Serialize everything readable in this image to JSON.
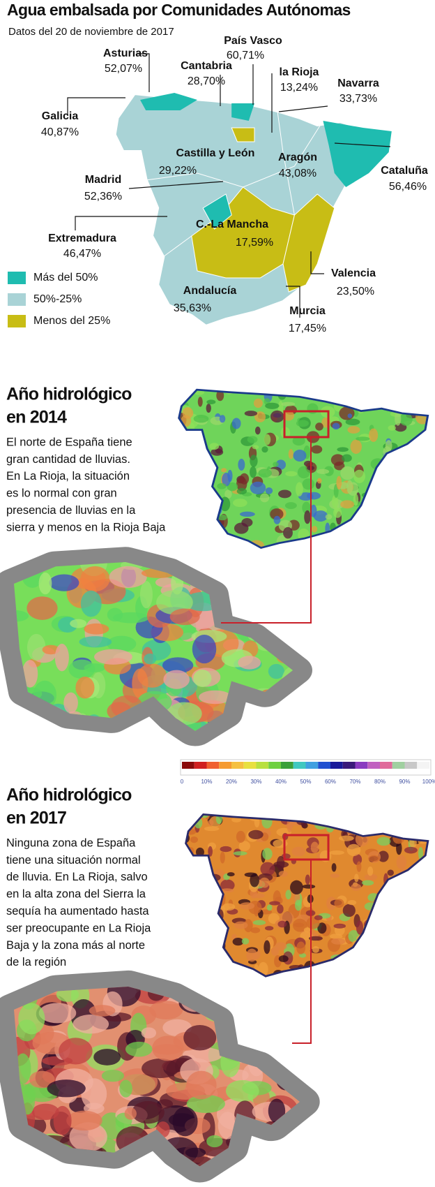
{
  "header": {
    "title": "Agua embalsada por Comunidades Autónomas",
    "subtitle": "Datos del 20 de noviembre de 2017"
  },
  "regions": [
    {
      "name": "Asturias",
      "value": "52,07%"
    },
    {
      "name": "Cantabria",
      "value": "28,70%"
    },
    {
      "name": "País Vasco",
      "value": "60,71%"
    },
    {
      "name": "la Rioja",
      "value": "13,24%"
    },
    {
      "name": "Navarra",
      "value": "33,73%"
    },
    {
      "name": "Galicia",
      "value": "40,87%"
    },
    {
      "name": "Castilla y León",
      "value": "29,22%"
    },
    {
      "name": "Aragón",
      "value": "43,08%"
    },
    {
      "name": "Cataluña",
      "value": "56,46%"
    },
    {
      "name": "Madrid",
      "value": "52,36%"
    },
    {
      "name": "Extremadura",
      "value": "46,47%"
    },
    {
      "name": "C.-La Mancha",
      "value": "17,59%"
    },
    {
      "name": "Valencia",
      "value": "23,50%"
    },
    {
      "name": "Andalucía",
      "value": "35,63%"
    },
    {
      "name": "Murcia",
      "value": "17,45%"
    }
  ],
  "legend": [
    {
      "label": "Más del 50%",
      "color": "#1fbcb0"
    },
    {
      "label": "50%-25%",
      "color": "#a9d3d6"
    },
    {
      "label": "Menos del 25%",
      "color": "#c8bd15"
    }
  ],
  "sections": [
    {
      "title": [
        "Año hidrológico",
        "en 2014"
      ],
      "text": [
        "El norte de España tiene",
        "gran cantidad de lluvias.",
        "En La Rioja, la situación",
        "es lo normal con gran",
        "presencia de lluvias en la",
        "sierra y menos en la Rioja Baja"
      ]
    },
    {
      "title": [
        "Año hidrológico",
        "en 2017"
      ],
      "text": [
        "Ninguna zona de España",
        "tiene una situación normal",
        "de lluvia. En La Rioja, salvo",
        "en la alta zona del Sierra la",
        "sequía ha aumentado hasta",
        "ser preocupante en La Rioja",
        "Baja y la zona más al norte",
        "de la región"
      ]
    }
  ],
  "scale": {
    "labels": [
      "0",
      "10%",
      "20%",
      "30%",
      "40%",
      "50%",
      "60%",
      "70%",
      "80%",
      "90%",
      "100%"
    ]
  }
}
